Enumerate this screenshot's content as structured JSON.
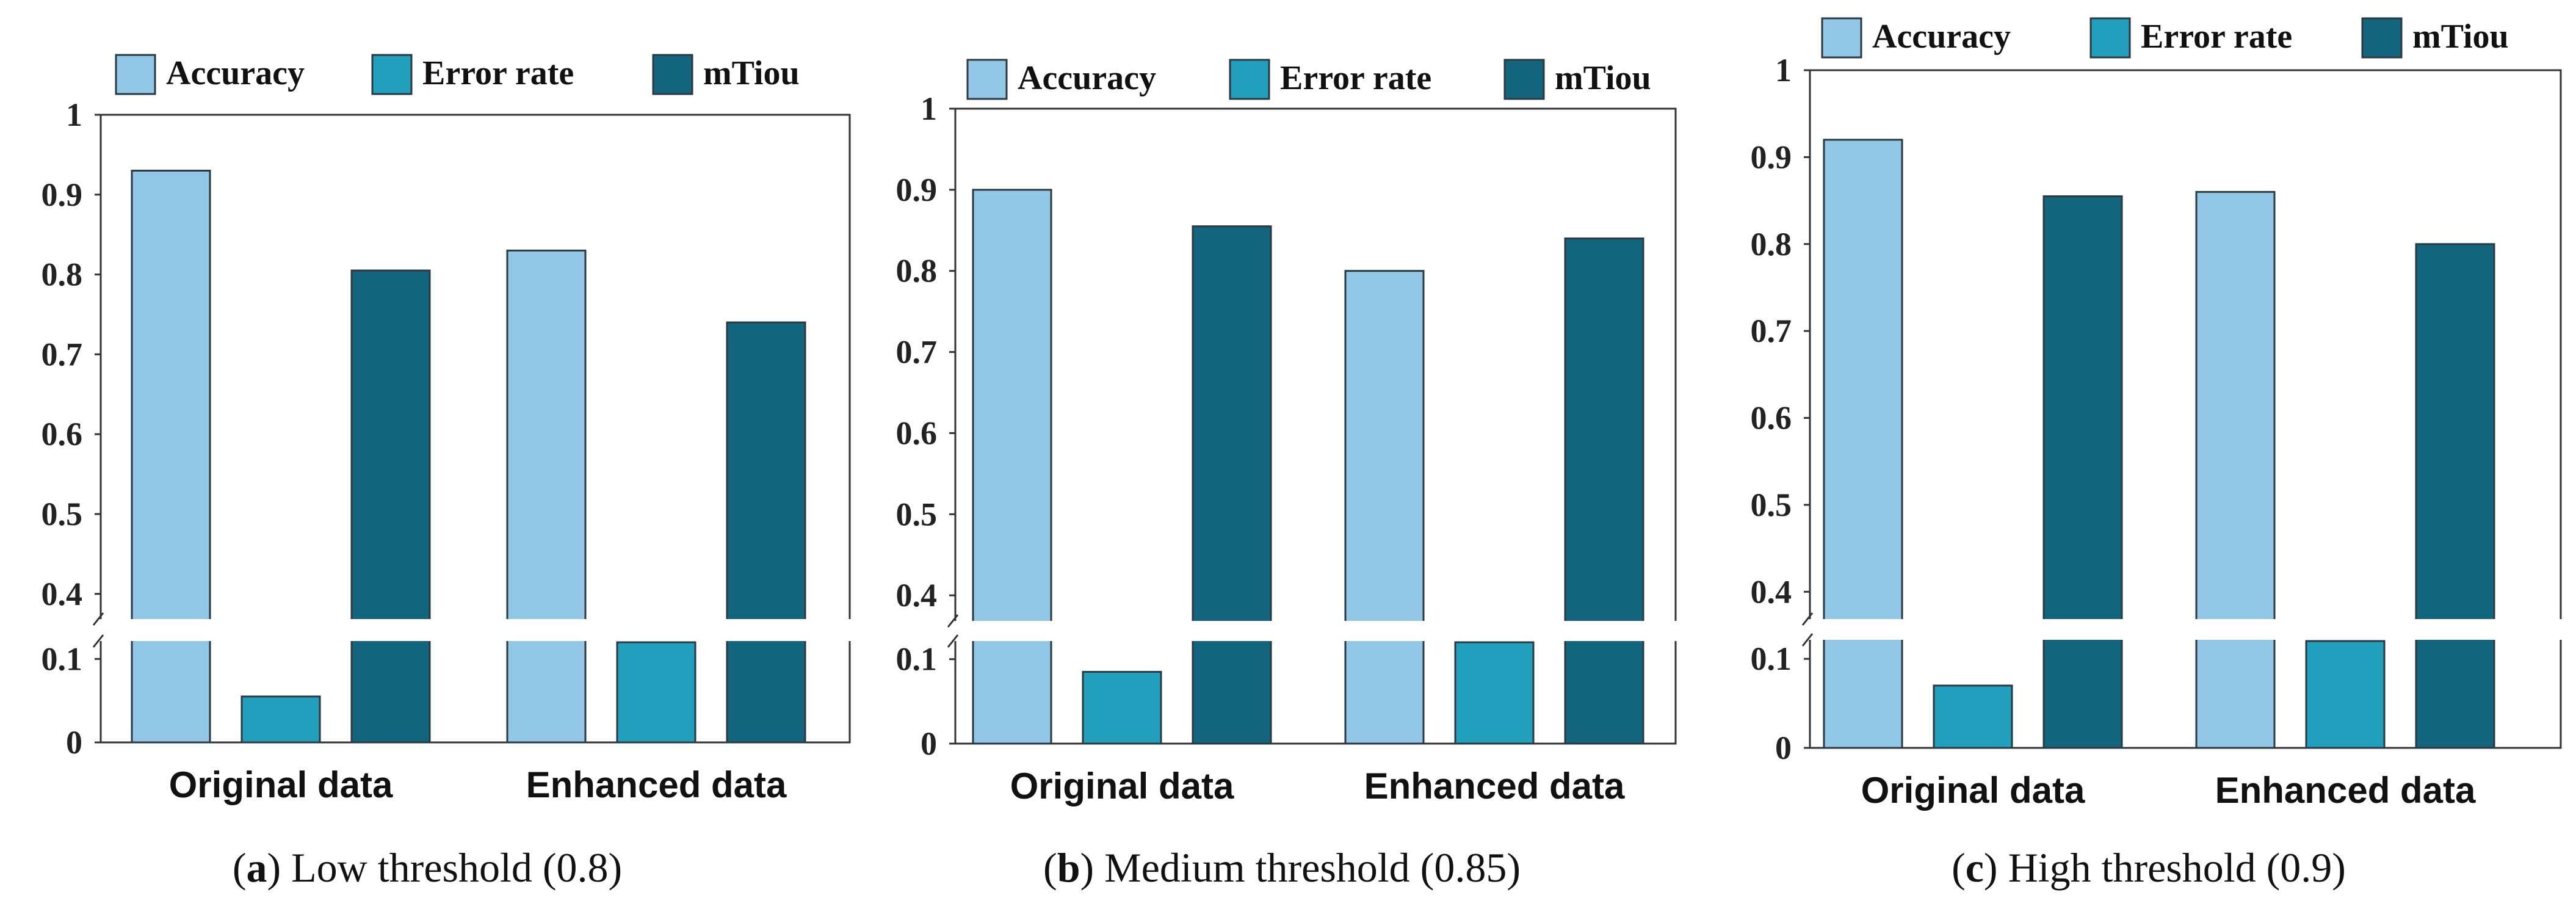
{
  "chart_data": [
    {
      "type": "bar",
      "categories": [
        "Original data",
        "Enhanced data"
      ],
      "series": [
        {
          "name": "Accuracy",
          "values": [
            0.93,
            0.83
          ]
        },
        {
          "name": "Error rate",
          "values": [
            0.055,
            0.12
          ]
        },
        {
          "name": "mTiou",
          "values": [
            0.805,
            0.74
          ]
        }
      ],
      "yticks": [
        "0",
        "0.1",
        "0.4",
        "0.5",
        "0.6",
        "0.7",
        "0.8",
        "0.9",
        "1"
      ],
      "ylim": [
        0,
        1
      ],
      "axis_break": [
        0.12,
        0.37
      ],
      "legend_position": "top",
      "caption_letter": "a",
      "caption_text": "Low threshold (0.8)"
    },
    {
      "type": "bar",
      "categories": [
        "Original data",
        "Enhanced data"
      ],
      "series": [
        {
          "name": "Accuracy",
          "values": [
            0.9,
            0.8
          ]
        },
        {
          "name": "Error rate",
          "values": [
            0.085,
            0.12
          ]
        },
        {
          "name": "mTiou",
          "values": [
            0.855,
            0.84
          ]
        }
      ],
      "yticks": [
        "0",
        "0.1",
        "0.4",
        "0.5",
        "0.6",
        "0.7",
        "0.8",
        "0.9",
        "1"
      ],
      "ylim": [
        0,
        1
      ],
      "axis_break": [
        0.12,
        0.37
      ],
      "legend_position": "top",
      "caption_letter": "b",
      "caption_text": "Medium threshold (0.85)"
    },
    {
      "type": "bar",
      "categories": [
        "Original data",
        "Enhanced data"
      ],
      "series": [
        {
          "name": "Accuracy",
          "values": [
            0.92,
            0.86
          ]
        },
        {
          "name": "Error rate",
          "values": [
            0.07,
            0.12
          ]
        },
        {
          "name": "mTiou",
          "values": [
            0.855,
            0.8
          ]
        }
      ],
      "yticks": [
        "0",
        "0.1",
        "0.4",
        "0.5",
        "0.6",
        "0.7",
        "0.8",
        "0.9",
        "1"
      ],
      "ylim": [
        0,
        1
      ],
      "axis_break": [
        0.12,
        0.37
      ],
      "legend_position": "top",
      "caption_letter": "c",
      "caption_text": "High threshold (0.9)"
    }
  ],
  "colors": {
    "Accuracy": "#92c7e6",
    "Error rate": "#229fbd",
    "mTiou": "#13657e"
  }
}
